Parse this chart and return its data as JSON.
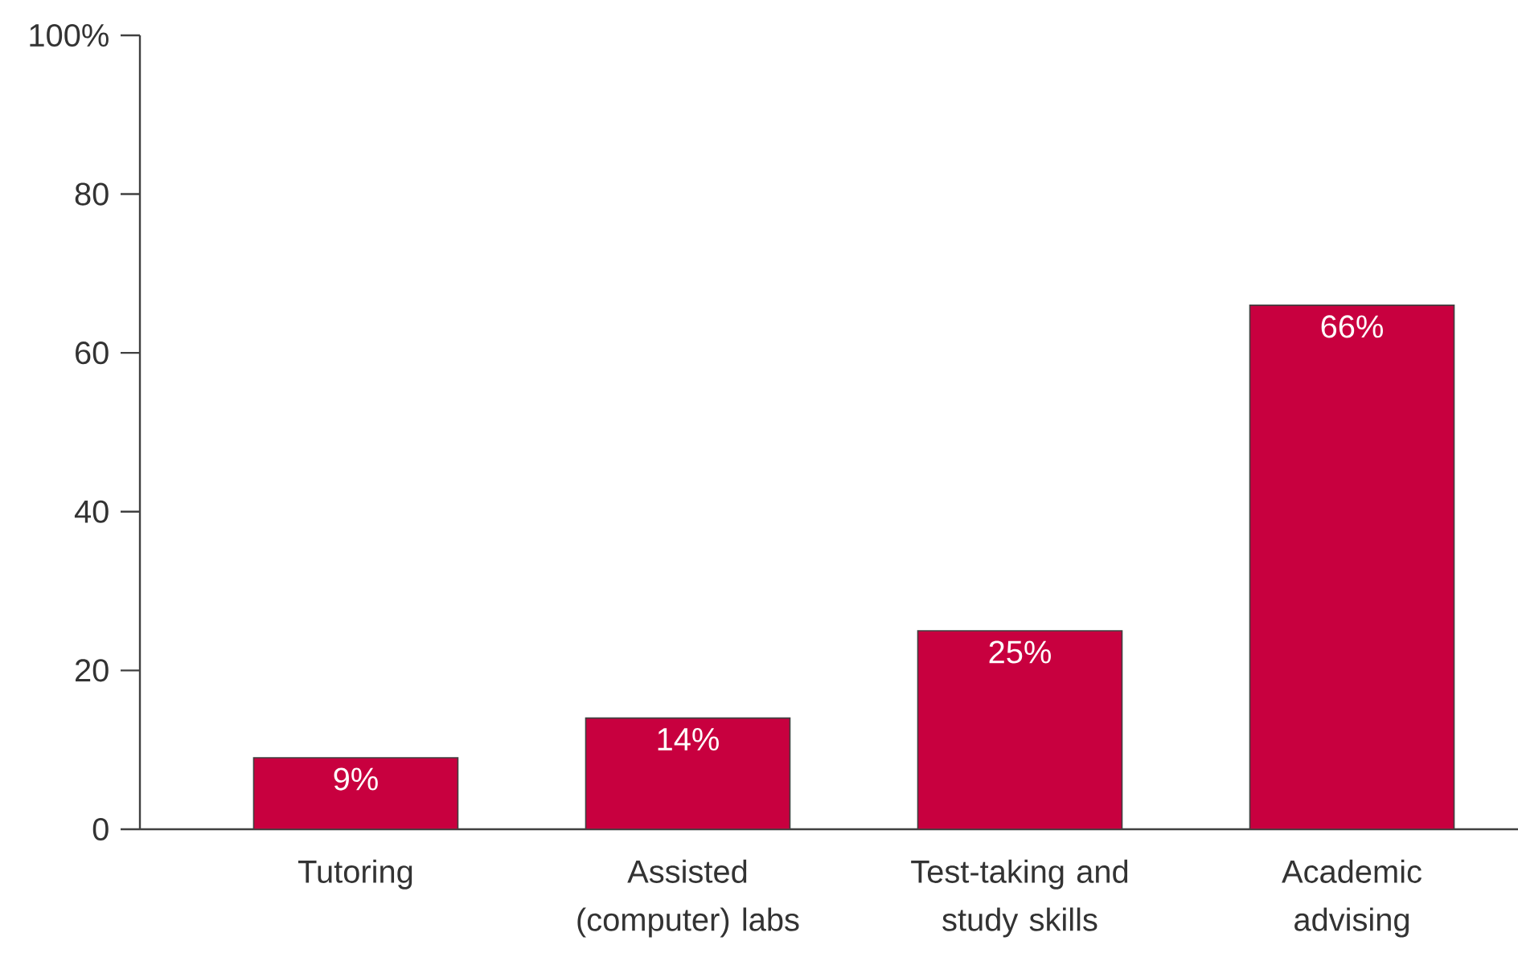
{
  "chart_data": {
    "type": "bar",
    "categories": [
      "Tutoring",
      "Assisted (computer) labs",
      "Test-taking and study skills",
      "Academic advising"
    ],
    "values": [
      9,
      14,
      25,
      66
    ],
    "value_labels": [
      "9%",
      "14%",
      "25%",
      "66%"
    ],
    "color": "#c8003f",
    "ylim": [
      0,
      100
    ],
    "yticks": [
      0,
      20,
      40,
      60,
      80,
      {
        "value": 100,
        "label": "100%"
      }
    ],
    "grid": false
  }
}
